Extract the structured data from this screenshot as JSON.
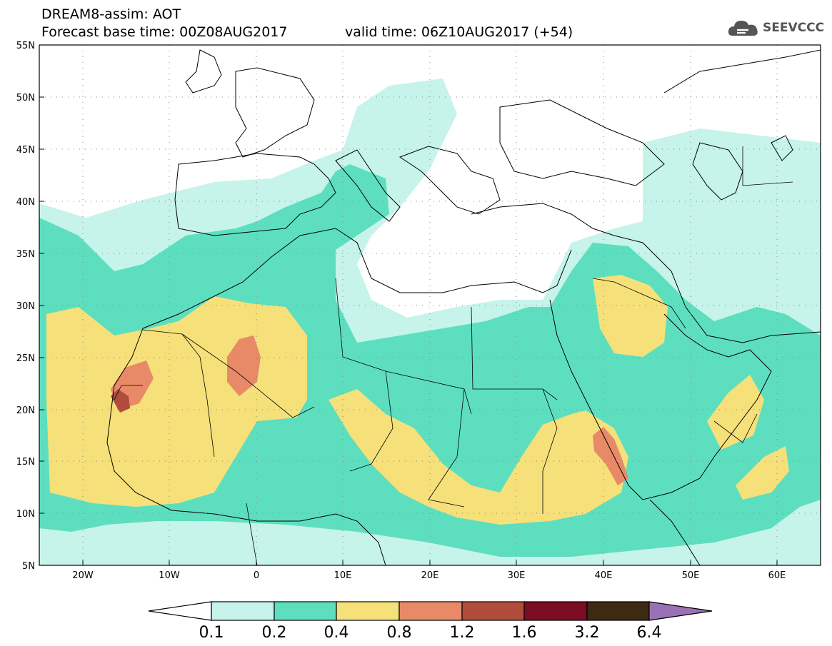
{
  "header": {
    "line1": "DREAM8-assim: AOT",
    "line2": "Forecast base time: 00Z08AUG2017",
    "line3": "valid time: 06Z10AUG2017 (+54)"
  },
  "logo": {
    "text": "SEEVCCC",
    "icon": "cloud-icon",
    "color": "#555555"
  },
  "map": {
    "lon_range": [
      -25,
      65
    ],
    "lat_range": [
      5,
      55
    ],
    "lat_labels": [
      "55N",
      "50N",
      "45N",
      "40N",
      "35N",
      "30N",
      "25N",
      "20N",
      "15N",
      "10N",
      "5N"
    ],
    "lon_labels": [
      "20W",
      "10W",
      "0",
      "10E",
      "20E",
      "30E",
      "40E",
      "50E",
      "60E"
    ],
    "grid": "dotted"
  },
  "colorbar": {
    "labels": [
      "0.1",
      "0.2",
      "0.4",
      "0.8",
      "1.2",
      "1.6",
      "3.2",
      "6.4"
    ],
    "colors": [
      "#c6f3ea",
      "#5ddfbf",
      "#f5e07a",
      "#e88a68",
      "#b04c3c",
      "#7a0c24",
      "#3c2a12"
    ],
    "over_color": "#9b71b5",
    "under_color": "#ffffff"
  }
}
